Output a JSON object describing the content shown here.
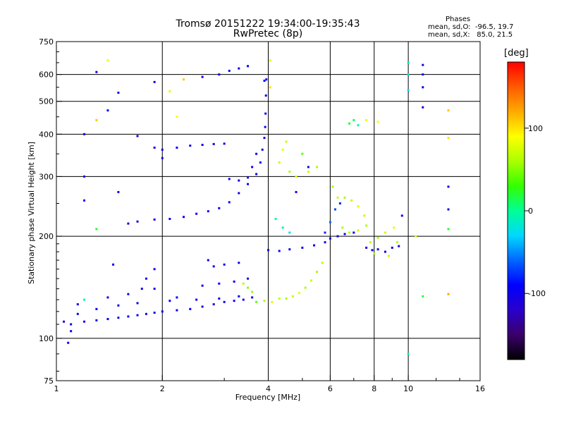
{
  "header": {
    "title": "Tromsø 20151222 19:34:00-19:35:43",
    "subtitle": "RwPretec (8p)",
    "phases_heading": "Phases",
    "stats_line1": "mean, sd,O:  -96.5, 19.7",
    "stats_line2": "mean, sd,X:   85.0, 21.5"
  },
  "colorbar": {
    "unit": "[deg]",
    "range": [
      -180,
      180
    ],
    "ticks": [
      {
        "value": 100,
        "label": "100"
      },
      {
        "value": 0,
        "label": "0"
      },
      {
        "value": -100,
        "label": "-100"
      }
    ],
    "stops": [
      "#000000",
      "#3b006b",
      "#2a00cc",
      "#0000ff",
      "#0066ff",
      "#00d8ff",
      "#00ff96",
      "#33ff00",
      "#aaff00",
      "#ffff00",
      "#ffaa00",
      "#ff5a00",
      "#ff0000"
    ]
  },
  "chart_data": {
    "type": "scatter",
    "title": "Tromsø 20151222 19:34:00-19:35:43",
    "subtitle": "RwPretec (8p)",
    "xlabel": "Frequency [MHz]",
    "ylabel": "Stationary phase Virtual Height [km]",
    "x_scale": "log",
    "y_scale": "log",
    "xlim": [
      1,
      16
    ],
    "ylim": [
      75,
      750
    ],
    "x_ticks": [
      {
        "v": 1,
        "label": "1"
      },
      {
        "v": 2,
        "label": "2"
      },
      {
        "v": 4,
        "label": "4"
      },
      {
        "v": 6,
        "label": "6"
      },
      {
        "v": 8,
        "label": "8"
      },
      {
        "v": 10,
        "label": "10"
      },
      {
        "v": 16,
        "label": "16"
      }
    ],
    "y_ticks": [
      {
        "v": 75,
        "label": "75"
      },
      {
        "v": 100,
        "label": "100"
      },
      {
        "v": 200,
        "label": "200"
      },
      {
        "v": 300,
        "label": "300"
      },
      {
        "v": 400,
        "label": "400"
      },
      {
        "v": 500,
        "label": "500"
      },
      {
        "v": 600,
        "label": "600"
      },
      {
        "v": 750,
        "label": "750"
      }
    ],
    "grid_x": [
      2,
      4,
      6,
      8,
      10
    ],
    "grid_y": [
      100,
      200,
      300,
      400,
      500,
      600
    ],
    "color_scale": "phase [deg]",
    "points": [
      [
        1.05,
        112,
        -110
      ],
      [
        1.1,
        110,
        -105
      ],
      [
        1.2,
        112,
        -100
      ],
      [
        1.3,
        113,
        -100
      ],
      [
        1.4,
        114,
        -95
      ],
      [
        1.5,
        115,
        -100
      ],
      [
        1.6,
        116,
        -95
      ],
      [
        1.7,
        117,
        -100
      ],
      [
        1.8,
        118,
        -105
      ],
      [
        1.9,
        119,
        -100
      ],
      [
        2.0,
        120,
        -95
      ],
      [
        2.2,
        121,
        -100
      ],
      [
        2.4,
        122,
        -95
      ],
      [
        2.6,
        124,
        -100
      ],
      [
        2.8,
        126,
        -105
      ],
      [
        3.0,
        128,
        -95
      ],
      [
        3.2,
        129,
        -100
      ],
      [
        3.4,
        130,
        -95
      ],
      [
        3.6,
        132,
        -100
      ],
      [
        1.15,
        118,
        -100
      ],
      [
        1.3,
        122,
        -95
      ],
      [
        1.5,
        125,
        -100
      ],
      [
        1.7,
        127,
        -105
      ],
      [
        2.1,
        129,
        -90
      ],
      [
        2.5,
        130,
        -100
      ],
      [
        2.9,
        131,
        -95
      ],
      [
        3.3,
        133,
        -100
      ],
      [
        1.6,
        135,
        -95
      ],
      [
        1.9,
        140,
        -100
      ],
      [
        2.2,
        132,
        -90
      ],
      [
        1.4,
        132,
        -100
      ],
      [
        1.75,
        140,
        -100
      ],
      [
        1.8,
        150,
        -100
      ],
      [
        1.9,
        160,
        -105
      ],
      [
        2.6,
        143,
        -100
      ],
      [
        2.9,
        145,
        -95
      ],
      [
        3.2,
        147,
        -100
      ],
      [
        3.5,
        150,
        -100
      ],
      [
        2.8,
        163,
        -100
      ],
      [
        3.0,
        165,
        -105
      ],
      [
        3.3,
        167,
        -100
      ],
      [
        2.7,
        170,
        -100
      ],
      [
        3.7,
        128,
        40
      ],
      [
        3.9,
        129,
        60
      ],
      [
        4.1,
        128,
        80
      ],
      [
        4.3,
        131,
        70
      ],
      [
        4.5,
        131,
        60
      ],
      [
        4.7,
        133,
        70
      ],
      [
        4.9,
        136,
        80
      ],
      [
        5.1,
        141,
        60
      ],
      [
        5.3,
        148,
        70
      ],
      [
        5.5,
        157,
        60
      ],
      [
        5.7,
        167,
        65
      ],
      [
        3.6,
        137,
        55
      ],
      [
        3.5,
        141,
        50
      ],
      [
        3.4,
        145,
        65
      ],
      [
        1.6,
        218,
        -100
      ],
      [
        1.7,
        221,
        -105
      ],
      [
        1.9,
        224,
        -100
      ],
      [
        2.1,
        225,
        -95
      ],
      [
        2.3,
        228,
        -100
      ],
      [
        2.5,
        233,
        -100
      ],
      [
        2.7,
        237,
        -95
      ],
      [
        2.9,
        242,
        -100
      ],
      [
        3.1,
        252,
        -100
      ],
      [
        3.3,
        268,
        -105
      ],
      [
        3.5,
        285,
        -100
      ],
      [
        3.7,
        305,
        -100
      ],
      [
        3.8,
        330,
        -95
      ],
      [
        3.85,
        360,
        -100
      ],
      [
        3.9,
        390,
        -100
      ],
      [
        3.92,
        420,
        -95
      ],
      [
        3.93,
        460,
        -100
      ],
      [
        3.94,
        520,
        -100
      ],
      [
        3.95,
        580,
        -95
      ],
      [
        3.1,
        295,
        -100
      ],
      [
        3.3,
        292,
        -95
      ],
      [
        3.5,
        298,
        -100
      ],
      [
        3.6,
        320,
        -100
      ],
      [
        3.7,
        350,
        -95
      ],
      [
        2.0,
        360,
        -100
      ],
      [
        2.2,
        365,
        -95
      ],
      [
        2.4,
        370,
        -100
      ],
      [
        2.6,
        372,
        -100
      ],
      [
        2.8,
        374,
        -95
      ],
      [
        3.0,
        375,
        -100
      ],
      [
        2.6,
        590,
        -100
      ],
      [
        2.9,
        600,
        -95
      ],
      [
        3.1,
        615,
        -100
      ],
      [
        3.3,
        625,
        -100
      ],
      [
        3.5,
        635,
        -95
      ],
      [
        4.3,
        330,
        70
      ],
      [
        4.4,
        360,
        80
      ],
      [
        4.5,
        380,
        70
      ],
      [
        4.6,
        310,
        60
      ],
      [
        4.8,
        300,
        80
      ],
      [
        5.2,
        310,
        70
      ],
      [
        5.5,
        320,
        60
      ],
      [
        4.0,
        182,
        -100
      ],
      [
        4.3,
        181,
        -95
      ],
      [
        4.6,
        183,
        -100
      ],
      [
        5.0,
        185,
        -100
      ],
      [
        5.4,
        188,
        -95
      ],
      [
        5.8,
        192,
        -100
      ],
      [
        6.0,
        197,
        -90
      ],
      [
        6.3,
        200,
        -100
      ],
      [
        6.6,
        203,
        -95
      ],
      [
        7.0,
        205,
        -100
      ],
      [
        5.8,
        205,
        -80
      ],
      [
        6.0,
        220,
        -60
      ],
      [
        6.2,
        240,
        -70
      ],
      [
        6.4,
        250,
        -80
      ],
      [
        6.6,
        260,
        60
      ],
      [
        6.9,
        255,
        70
      ],
      [
        7.2,
        245,
        80
      ],
      [
        7.5,
        230,
        70
      ],
      [
        7.6,
        215,
        60
      ],
      [
        7.2,
        208,
        70
      ],
      [
        6.8,
        205,
        60
      ],
      [
        6.5,
        212,
        60
      ],
      [
        7.6,
        185,
        -100
      ],
      [
        7.9,
        182,
        -95
      ],
      [
        8.2,
        183,
        -100
      ],
      [
        8.6,
        180,
        -100
      ],
      [
        9.0,
        185,
        -95
      ],
      [
        9.4,
        187,
        -100
      ],
      [
        7.8,
        192,
        70
      ],
      [
        8.2,
        198,
        60
      ],
      [
        8.6,
        205,
        70
      ],
      [
        9.1,
        212,
        80
      ],
      [
        8.0,
        178,
        60
      ],
      [
        8.8,
        175,
        70
      ],
      [
        4.2,
        225,
        0
      ],
      [
        4.4,
        212,
        -10
      ],
      [
        4.6,
        205,
        -30
      ],
      [
        6.8,
        430,
        20
      ],
      [
        7.0,
        440,
        10
      ],
      [
        7.2,
        425,
        0
      ],
      [
        7.6,
        440,
        80
      ],
      [
        8.2,
        435,
        90
      ],
      [
        10.0,
        650,
        -10
      ],
      [
        10.0,
        600,
        -20
      ],
      [
        10.0,
        540,
        -30
      ],
      [
        11.0,
        640,
        -100
      ],
      [
        11.0,
        600,
        -90
      ],
      [
        11.0,
        550,
        -95
      ],
      [
        11.0,
        480,
        -100
      ],
      [
        13.0,
        280,
        -100
      ],
      [
        13.0,
        240,
        -95
      ],
      [
        13.0,
        210,
        20
      ],
      [
        13.0,
        135,
        120
      ],
      [
        13.0,
        470,
        110
      ],
      [
        13.0,
        390,
        100
      ],
      [
        1.3,
        610,
        -100
      ],
      [
        1.5,
        530,
        -100
      ],
      [
        1.4,
        470,
        -95
      ],
      [
        1.3,
        440,
        110
      ],
      [
        1.4,
        660,
        80
      ],
      [
        1.2,
        400,
        -100
      ],
      [
        1.2,
        300,
        -100
      ],
      [
        1.2,
        255,
        -100
      ],
      [
        1.3,
        210,
        20
      ],
      [
        1.5,
        270,
        -100
      ],
      [
        1.7,
        395,
        -100
      ],
      [
        1.9,
        365,
        -100
      ],
      [
        2.1,
        535,
        80
      ],
      [
        2.2,
        450,
        90
      ],
      [
        2.0,
        340,
        -100
      ],
      [
        1.1,
        105,
        -90
      ],
      [
        1.08,
        97,
        -100
      ],
      [
        1.15,
        126,
        -100
      ],
      [
        1.2,
        130,
        0
      ],
      [
        1.45,
        165,
        -100
      ],
      [
        3.9,
        575,
        -100
      ],
      [
        4.05,
        660,
        80
      ],
      [
        4.05,
        550,
        100
      ],
      [
        2.3,
        580,
        110
      ],
      [
        1.9,
        570,
        -100
      ],
      [
        4.8,
        270,
        -100
      ],
      [
        5.0,
        350,
        40
      ],
      [
        5.2,
        320,
        -100
      ],
      [
        10.0,
        90,
        0
      ],
      [
        11.0,
        133,
        20
      ],
      [
        10.5,
        200,
        80
      ],
      [
        9.6,
        230,
        -100
      ],
      [
        9.3,
        192,
        60
      ],
      [
        6.3,
        260,
        70
      ],
      [
        6.1,
        280,
        60
      ]
    ]
  }
}
